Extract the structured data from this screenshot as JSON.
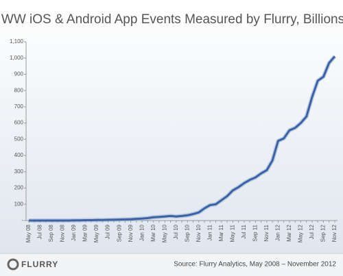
{
  "chart_data": {
    "type": "line",
    "title": "WW iOS & Android App Events Measured by Flurry, Billions",
    "logo_text": "FLURRY",
    "source": "Source: Flurry Analytics, May 2008 – November 2012",
    "categories": [
      "May 08",
      null,
      "Jul 08",
      null,
      "Sep 08",
      null,
      "Nov 08",
      null,
      "Jan 09",
      null,
      "Mar 09",
      null,
      "May 09",
      null,
      "Jul 09",
      null,
      "Sep 09",
      null,
      "Nov 09",
      null,
      "Jan 10",
      null,
      "Mar 10",
      null,
      "May 10",
      null,
      "Jul 10",
      null,
      "Sep 10",
      null,
      "Nov 10",
      null,
      "Jan 11",
      null,
      "Mar 11",
      null,
      "May 11",
      null,
      "Jul 11",
      null,
      "Sep 11",
      null,
      "Nov 11",
      null,
      "Jan 12",
      null,
      "Mar 12",
      null,
      "May 12",
      null,
      "Jul 12",
      null,
      "Sep 12",
      null,
      "Nov 12"
    ],
    "series": [
      {
        "name": "App Events",
        "color": "#3a62a8",
        "values": [
          0,
          0,
          0,
          0,
          0,
          0,
          0,
          0,
          1,
          1,
          2,
          2,
          3,
          3,
          4,
          5,
          6,
          7,
          8,
          10,
          12,
          15,
          20,
          22,
          25,
          28,
          25,
          28,
          32,
          40,
          50,
          75,
          95,
          100,
          125,
          150,
          185,
          205,
          230,
          250,
          265,
          290,
          310,
          370,
          490,
          505,
          555,
          570,
          600,
          640,
          760,
          860,
          885,
          970,
          1010
        ]
      }
    ],
    "ylim": [
      0,
      1100
    ],
    "yticks": [
      {
        "value": 0,
        "label": "-"
      },
      100,
      200,
      300,
      400,
      500,
      600,
      700,
      800,
      900,
      {
        "value": 1000,
        "label": "1,000"
      },
      {
        "value": 1100,
        "label": "1,100"
      }
    ],
    "grid": false
  }
}
